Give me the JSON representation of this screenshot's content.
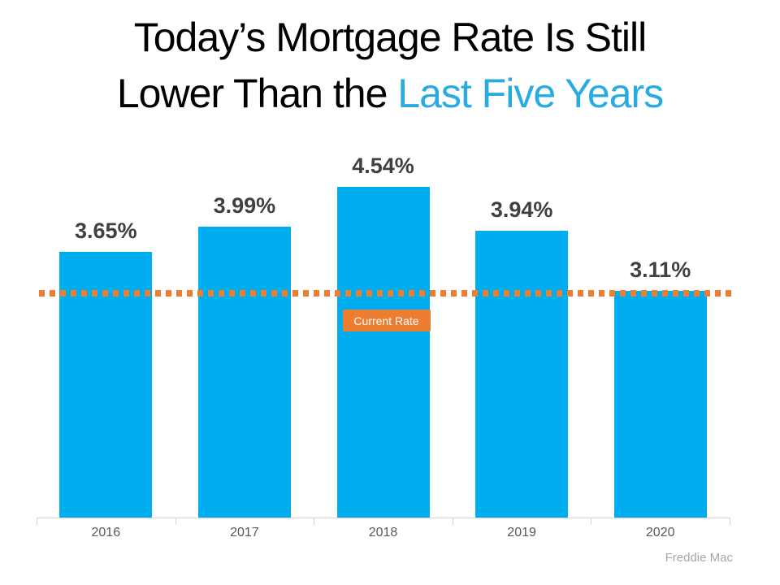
{
  "title": {
    "line1": "Today’s Mortgage Rate Is Still",
    "line2_black": "Lower Than the ",
    "line2_highlight": "Last Five Years"
  },
  "chart_data": {
    "type": "bar",
    "title": "Today’s Mortgage Rate Is Still Lower Than the Last Five Years",
    "categories": [
      "2016",
      "2017",
      "2018",
      "2019",
      "2020"
    ],
    "values": [
      3.65,
      3.99,
      4.54,
      3.94,
      3.11
    ],
    "value_labels": [
      "3.65%",
      "3.99%",
      "4.54%",
      "3.94%",
      "3.11%"
    ],
    "xlabel": "",
    "ylabel": "",
    "ylim": [
      0,
      5
    ],
    "grid": false,
    "legend": false,
    "reference_line": {
      "value": 3.11,
      "label": "Current Rate",
      "style": "dotted",
      "anchor_category": "2018"
    }
  },
  "source": "Freddie Mac",
  "colors": {
    "background": "#FFFFFF",
    "title_text": "#000000",
    "title_highlight": "#29ABE2",
    "bar": "#00AEEF",
    "value_label": "#404040",
    "axis_line": "#D4D4D4",
    "tick_label": "#595959",
    "reference": "#ED7D31",
    "reference_label_bg": "#ED7D31",
    "reference_label_text": "#FFFFFF",
    "source_text": "#A6A6A6"
  }
}
